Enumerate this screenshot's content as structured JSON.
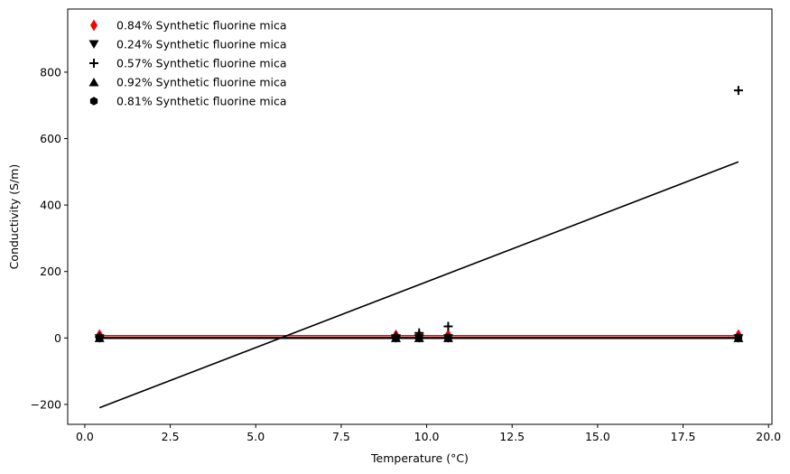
{
  "chart_data": {
    "type": "scatter",
    "title": "",
    "xlabel": "Temperature (°C)",
    "ylabel": "Conductivity (S/m)",
    "xlim": [
      -0.5,
      20.1
    ],
    "ylim": [
      -260,
      990
    ],
    "xticks": [
      0.0,
      2.5,
      5.0,
      7.5,
      10.0,
      12.5,
      15.0,
      17.5,
      20.0
    ],
    "xtick_labels": [
      "0.0",
      "2.5",
      "5.0",
      "7.5",
      "10.0",
      "12.5",
      "15.0",
      "17.5",
      "20.0"
    ],
    "yticks": [
      -200,
      0,
      200,
      400,
      600,
      800
    ],
    "ytick_labels": [
      "−200",
      "0",
      "200",
      "400",
      "600",
      "800"
    ],
    "grid": false,
    "legend_position": "top-left",
    "series": [
      {
        "name": "0.84% Synthetic fluorine mica",
        "marker": "thin-diamond",
        "color": "#ff0000",
        "x": [
          0.43,
          9.1,
          9.78,
          10.63,
          19.12
        ],
        "y": [
          9,
          8,
          8,
          9,
          9
        ],
        "fit_line": {
          "x": [
            0.43,
            19.12
          ],
          "y": [
            7,
            7
          ],
          "color": "#ff0000"
        }
      },
      {
        "name": "0.24% Synthetic fluorine mica",
        "marker": "triangle-down",
        "color": "#000000",
        "x": [
          0.43,
          9.1,
          9.78,
          10.63,
          19.12
        ],
        "y": [
          -1,
          -1,
          -1,
          -1,
          -1
        ],
        "fit_line": {
          "x": [
            0.43,
            19.12
          ],
          "y": [
            -1,
            -1
          ],
          "color": "#000000"
        }
      },
      {
        "name": "0.57% Synthetic fluorine mica",
        "marker": "plus",
        "color": "#000000",
        "x": [
          0.43,
          9.1,
          9.78,
          10.63,
          19.12
        ],
        "y": [
          3,
          5,
          15,
          35,
          745
        ],
        "fit_line": {
          "x": [
            0.43,
            19.12
          ],
          "y": [
            -210,
            530
          ],
          "color": "#000000"
        }
      },
      {
        "name": "0.92% Synthetic fluorine mica",
        "marker": "triangle-up",
        "color": "#000000",
        "x": [
          0.43,
          9.1,
          9.78,
          10.63,
          19.12
        ],
        "y": [
          0,
          0,
          0,
          0,
          0
        ],
        "fit_line": {
          "x": [
            0.43,
            19.12
          ],
          "y": [
            0,
            0
          ],
          "color": "#000000"
        }
      },
      {
        "name": "0.81% Synthetic fluorine mica",
        "marker": "hexagon",
        "color": "#000000",
        "x": [
          0.43,
          9.1,
          9.78,
          10.63,
          19.12
        ],
        "y": [
          1,
          1,
          1,
          1,
          1
        ],
        "fit_line": {
          "x": [
            0.43,
            19.12
          ],
          "y": [
            1,
            1
          ],
          "color": "#000000"
        }
      }
    ]
  }
}
